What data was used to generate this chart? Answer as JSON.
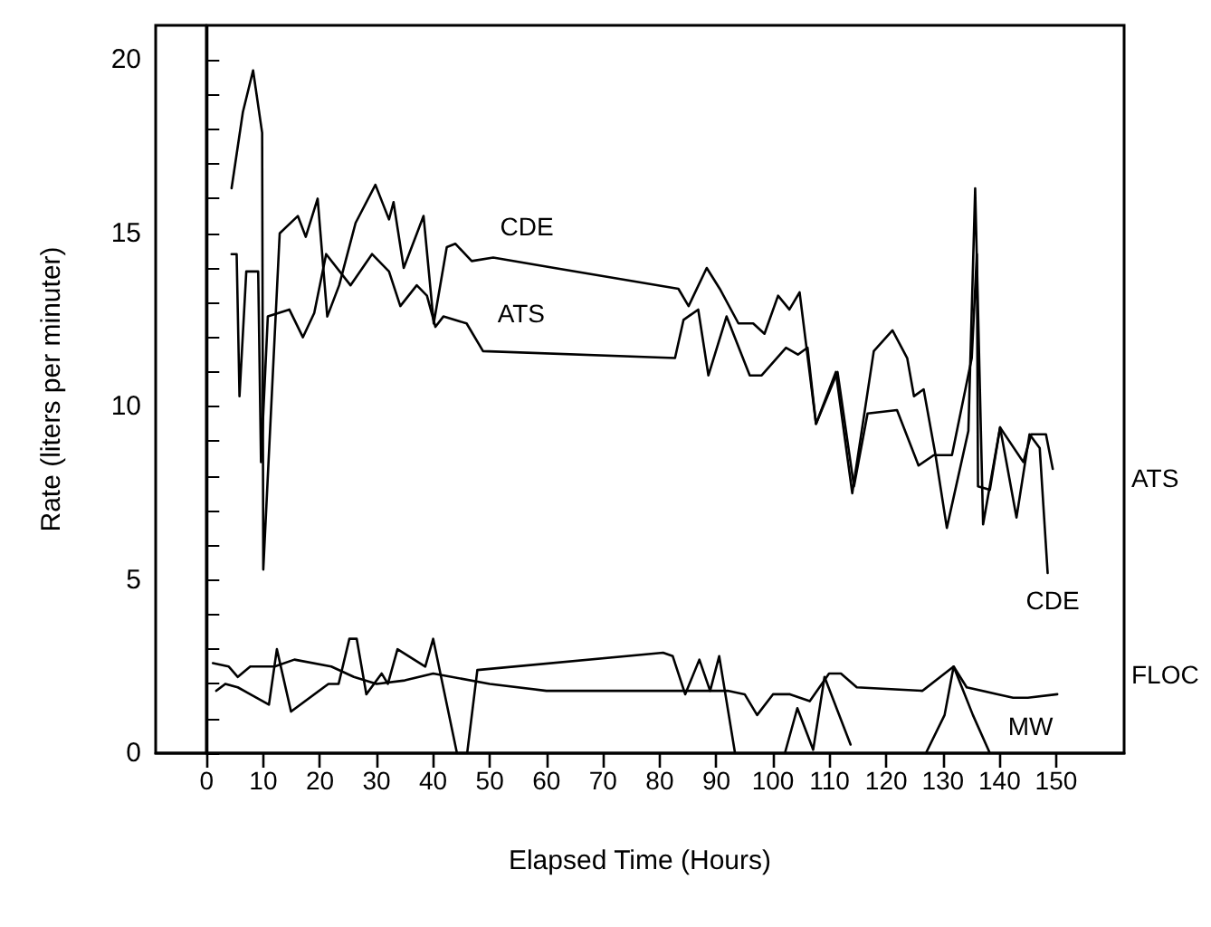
{
  "chart_data": {
    "type": "line",
    "xlabel": "Elapsed Time (Hours)",
    "ylabel": "Rate (liters per minuter)",
    "xlim": [
      -9,
      162
    ],
    "ylim": [
      0,
      21
    ],
    "xticks": [
      0,
      10,
      20,
      30,
      40,
      50,
      60,
      70,
      80,
      90,
      100,
      110,
      120,
      130,
      140,
      150
    ],
    "yticks": [
      0,
      {
        "value": 1,
        "label": null
      },
      {
        "value": 2,
        "label": null
      },
      {
        "value": 3,
        "label": null
      },
      {
        "value": 4,
        "label": null
      },
      5,
      {
        "value": 6,
        "label": null
      },
      {
        "value": 7,
        "label": null
      },
      {
        "value": 8,
        "label": null
      },
      {
        "value": 9,
        "label": null
      },
      10,
      {
        "value": 11,
        "label": null
      },
      {
        "value": 12,
        "label": null
      },
      {
        "value": 13,
        "label": null
      },
      {
        "value": 14,
        "label": null
      },
      15,
      {
        "value": 16,
        "label": null
      },
      {
        "value": 17,
        "label": null
      },
      {
        "value": 18,
        "label": null
      },
      {
        "value": 19,
        "label": null
      },
      20
    ],
    "grid": false,
    "legend": false,
    "marker": "none",
    "line_style": "solid",
    "ref_lines": [
      {
        "axis": "x",
        "value": 0,
        "color": "#000000"
      }
    ],
    "series": [
      {
        "name": "CDE",
        "color": "#000000",
        "x": [
          4.4,
          6.4,
          8.2,
          9.8,
          10.0,
          12.9,
          16.1,
          17.5,
          19.6,
          21.3,
          23.4,
          26.3,
          29.8,
          32.2,
          33.0,
          34.8,
          38.3,
          40.1,
          42.4,
          43.9,
          46.8,
          50.6,
          61.4,
          83.3,
          85.1,
          88.3,
          90.6,
          93.9,
          96.5,
          98.5,
          100.9,
          102.9,
          104.7,
          107.6,
          111.1,
          114.0,
          117.8,
          121.1,
          123.7,
          124.9,
          126.6,
          128.7,
          130.7,
          134.5,
          135.7,
          137.1,
          140.1,
          143.0,
          145.3,
          147.1,
          148.5
        ],
        "values": [
          16.3,
          18.5,
          19.7,
          17.9,
          5.3,
          15.0,
          15.5,
          14.9,
          16.0,
          12.6,
          13.5,
          15.3,
          16.4,
          15.4,
          15.9,
          14.0,
          15.5,
          12.4,
          14.6,
          14.7,
          14.2,
          14.3,
          14.0,
          13.4,
          12.9,
          14.0,
          13.4,
          12.4,
          12.4,
          12.1,
          13.2,
          12.8,
          13.3,
          9.5,
          11.0,
          7.5,
          11.6,
          12.2,
          11.4,
          10.3,
          10.5,
          8.6,
          6.5,
          9.3,
          16.3,
          6.6,
          9.4,
          6.8,
          9.2,
          8.8,
          5.2
        ]
      },
      {
        "name": "ATS",
        "color": "#000000",
        "x": [
          4.4,
          5.3,
          5.8,
          7.0,
          9.1,
          9.6,
          10.8,
          14.6,
          17.0,
          19.0,
          21.1,
          25.4,
          29.2,
          32.2,
          34.2,
          37.1,
          38.9,
          40.4,
          41.8,
          45.9,
          48.8,
          82.7,
          84.2,
          86.8,
          88.6,
          91.8,
          95.9,
          98.0,
          102.3,
          104.4,
          106.1,
          107.6,
          111.4,
          114.3,
          116.7,
          121.9,
          125.7,
          128.4,
          131.6,
          135.1,
          136.0,
          136.2,
          138.3,
          140.1,
          144.2,
          145.6,
          148.2,
          149.4
        ],
        "values": [
          14.4,
          14.4,
          10.3,
          13.9,
          13.9,
          8.4,
          12.6,
          12.8,
          12.0,
          12.7,
          14.4,
          13.5,
          14.4,
          13.9,
          12.9,
          13.5,
          13.2,
          12.3,
          12.6,
          12.4,
          11.6,
          11.4,
          12.5,
          12.8,
          10.9,
          12.6,
          10.9,
          10.9,
          11.7,
          11.5,
          11.7,
          9.5,
          11.0,
          7.7,
          9.8,
          9.9,
          8.3,
          8.6,
          8.6,
          11.4,
          14.4,
          7.7,
          7.6,
          9.4,
          8.4,
          9.2,
          9.2,
          8.2
        ]
      },
      {
        "name": "FLOC",
        "color": "#000000",
        "x": [
          1.1,
          3.9,
          5.5,
          7.7,
          12,
          15.5,
          22,
          26,
          30,
          35,
          40,
          50,
          60,
          80,
          85,
          92,
          95,
          97.2,
          100,
          103,
          106.5,
          109.9,
          112,
          114.8,
          126.4,
          131.9,
          134.2,
          139.7,
          142.4,
          145,
          150.2
        ],
        "values": [
          2.6,
          2.5,
          2.2,
          2.5,
          2.5,
          2.7,
          2.5,
          2.2,
          2.0,
          2.1,
          2.3,
          2.0,
          1.8,
          1.8,
          1.8,
          1.8,
          1.7,
          1.1,
          1.7,
          1.7,
          1.5,
          2.3,
          2.3,
          1.9,
          1.8,
          2.5,
          1.9,
          1.7,
          1.6,
          1.6,
          1.7
        ]
      },
      {
        "name": "MW",
        "color": "#000000",
        "x": [
          1.7,
          3.3,
          5.5,
          11,
          12.4,
          14.9,
          21.5,
          23.3,
          25.2,
          26.5,
          28.2,
          30.9,
          32,
          33.7,
          38.6,
          40,
          44.2,
          46,
          47.8,
          80.6,
          82.3,
          84.5,
          87,
          88.9,
          90.5,
          93.3,
          98,
          102.1,
          104.3,
          107.1,
          109.1,
          113.7,
          120,
          127,
          130.3,
          131.9,
          135.3,
          138.3
        ],
        "values": [
          1.8,
          2.0,
          1.9,
          1.4,
          3.0,
          1.2,
          2.0,
          2.0,
          3.3,
          3.3,
          1.7,
          2.3,
          2.0,
          3.0,
          2.5,
          3.3,
          0,
          0,
          2.4,
          2.9,
          2.8,
          1.7,
          2.7,
          1.8,
          2.8,
          0,
          null,
          0,
          1.3,
          0.1,
          2.2,
          0.25,
          null,
          0,
          1.1,
          2.5,
          1.1,
          0
        ]
      }
    ]
  }
}
